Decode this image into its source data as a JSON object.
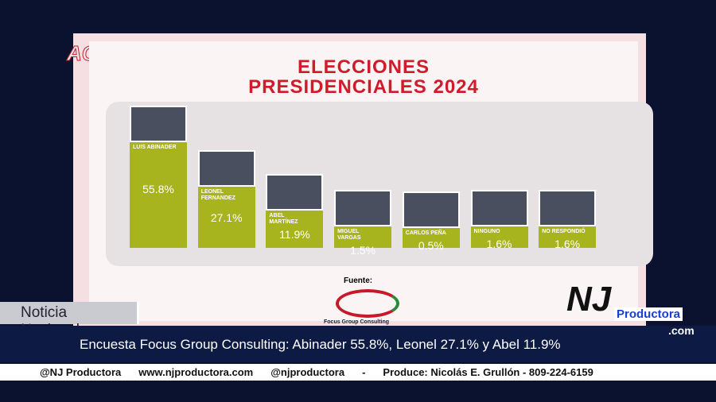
{
  "chart_data": {
    "type": "bar",
    "title": "ELECCIONES PRESIDENCIALES 2024",
    "categories": [
      "LUIS ABINADER",
      "LEONEL FERNANDEZ",
      "ABEL MARTÍNEZ",
      "MIGUEL VARGAS",
      "CARLOS PEÑA",
      "NINGUNO",
      "NO RESPONDIÓ"
    ],
    "values": [
      55.8,
      27.1,
      11.9,
      1.5,
      0.5,
      1.6,
      1.6
    ],
    "value_labels": [
      "55.8%",
      "27.1%",
      "11.9%",
      "1.5%",
      "0.5%",
      "1.6%",
      "1.6%"
    ],
    "color": "#a8b41e"
  },
  "branding": {
    "program_logo": "ACCESO",
    "source_label": "Fuente:",
    "source_name": "Focus Group Consulting"
  },
  "overlay": {
    "section": "Noticia Nacional",
    "headline": "Encuesta Focus Group Consulting: Abinader 55.8%, Leonel 27.1% y Abel 11.9%",
    "brand_main": "NJ",
    "brand_name": "Productora",
    "brand_domain": ".com",
    "footer": [
      "@NJ Productora",
      "www.njproductora.com",
      "@njproductora",
      "-",
      "Produce: Nicolás E. Grullón - 809-224-6159"
    ]
  }
}
